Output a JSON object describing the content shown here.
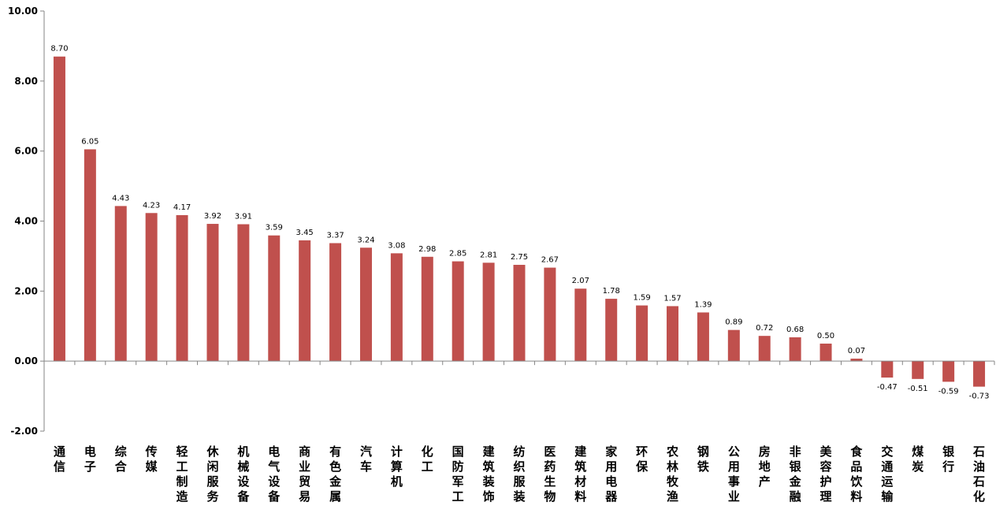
{
  "chart_data": {
    "type": "bar",
    "categories": [
      "通信",
      "电子",
      "综合",
      "传媒",
      "轻工制造",
      "休闲服务",
      "机械设备",
      "电气设备",
      "商业贸易",
      "有色金属",
      "汽车",
      "计算机",
      "化工",
      "国防军工",
      "建筑装饰",
      "纺织服装",
      "医药生物",
      "建筑材料",
      "家用电器",
      "环保",
      "农林牧渔",
      "钢铁",
      "公用事业",
      "房地产",
      "非银金融",
      "美容护理",
      "食品饮料",
      "交通运输",
      "煤炭",
      "银行",
      "石油石化"
    ],
    "values": [
      8.7,
      6.05,
      4.43,
      4.23,
      4.17,
      3.92,
      3.91,
      3.59,
      3.45,
      3.37,
      3.24,
      3.08,
      2.98,
      2.85,
      2.81,
      2.75,
      2.67,
      2.07,
      1.78,
      1.59,
      1.57,
      1.39,
      0.89,
      0.72,
      0.68,
      0.5,
      0.07,
      -0.47,
      -0.51,
      -0.59,
      -0.73
    ],
    "value_labels": [
      "8.70",
      "6.05",
      "4.43",
      "4.23",
      "4.17",
      "3.92",
      "3.91",
      "3.59",
      "3.45",
      "3.37",
      "3.24",
      "3.08",
      "2.98",
      "2.85",
      "2.81",
      "2.75",
      "2.67",
      "2.07",
      "1.78",
      "1.59",
      "1.57",
      "1.39",
      "0.89",
      "0.72",
      "0.68",
      "0.50",
      "0.07",
      "-0.47",
      "-0.51",
      "-0.59",
      "-0.73"
    ],
    "ylim": [
      -2,
      10
    ],
    "yticks": [
      -2,
      0,
      2,
      4,
      6,
      8,
      10
    ],
    "ytick_labels": [
      "-2.00",
      "0.00",
      "2.00",
      "4.00",
      "6.00",
      "8.00",
      "10.00"
    ],
    "title": "",
    "xlabel": "",
    "ylabel": "",
    "grid": false,
    "bar_color": "#c0504d"
  }
}
